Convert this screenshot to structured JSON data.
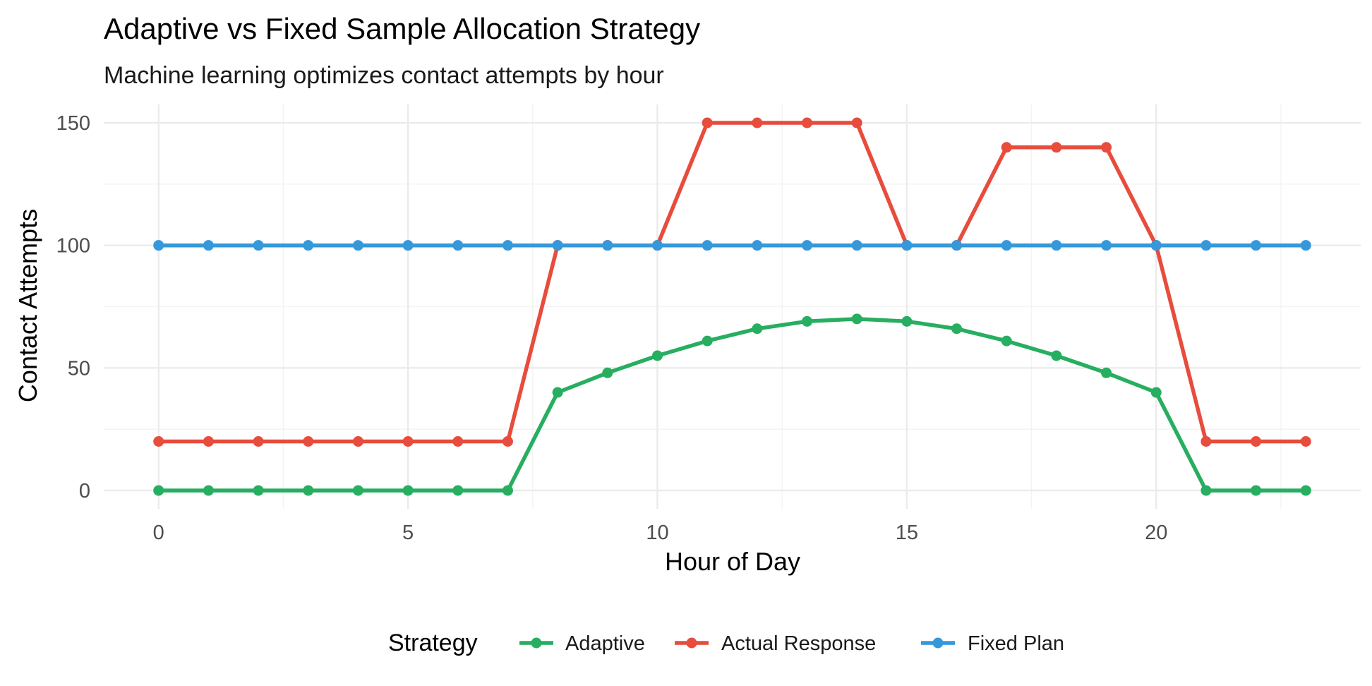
{
  "chart_data": {
    "type": "line",
    "title": "Adaptive vs Fixed Sample Allocation Strategy",
    "subtitle": "Machine learning optimizes contact attempts by hour",
    "xlabel": "Hour of Day",
    "ylabel": "Contact Attempts",
    "x": [
      0,
      1,
      2,
      3,
      4,
      5,
      6,
      7,
      8,
      9,
      10,
      11,
      12,
      13,
      14,
      15,
      16,
      17,
      18,
      19,
      20,
      21,
      22,
      23
    ],
    "xlim": [
      -1.1,
      24.1
    ],
    "ylim": [
      -7.5,
      157.5
    ],
    "x_ticks": [
      0,
      5,
      10,
      15,
      20
    ],
    "y_ticks": [
      0,
      50,
      100,
      150
    ],
    "grid": true,
    "legend": {
      "title": "Strategy",
      "position": "bottom"
    },
    "series": [
      {
        "name": "Adaptive",
        "color": "#27ae60",
        "values": [
          0,
          0,
          0,
          0,
          0,
          0,
          0,
          0,
          40,
          48,
          55,
          61,
          66,
          69,
          70,
          69,
          66,
          61,
          55,
          48,
          40,
          0,
          0,
          0
        ]
      },
      {
        "name": "Actual Response",
        "color": "#e74c3c",
        "values": [
          20,
          20,
          20,
          20,
          20,
          20,
          20,
          20,
          100,
          100,
          100,
          150,
          150,
          150,
          150,
          100,
          100,
          140,
          140,
          140,
          100,
          20,
          20,
          20
        ]
      },
      {
        "name": "Fixed Plan",
        "color": "#3498db",
        "values": [
          100,
          100,
          100,
          100,
          100,
          100,
          100,
          100,
          100,
          100,
          100,
          100,
          100,
          100,
          100,
          100,
          100,
          100,
          100,
          100,
          100,
          100,
          100,
          100
        ]
      }
    ]
  }
}
